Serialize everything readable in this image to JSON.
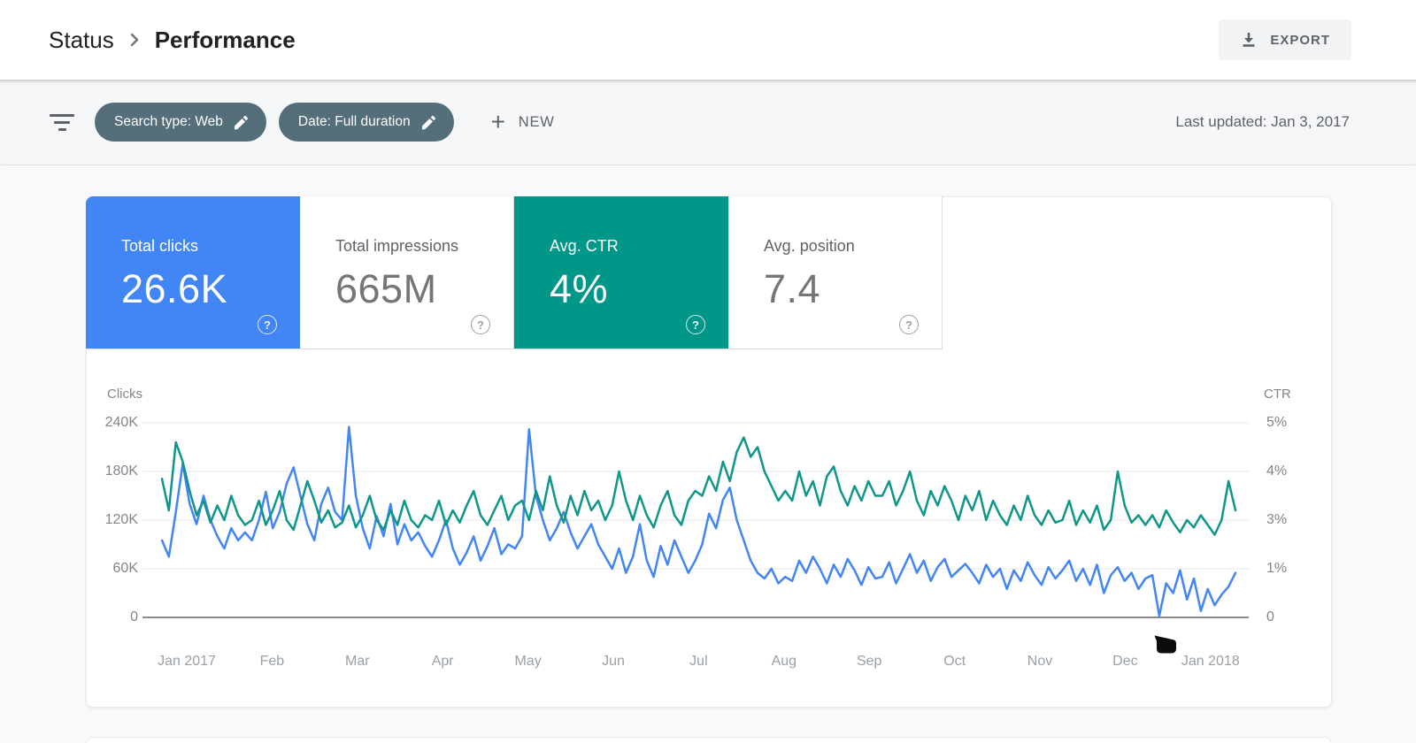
{
  "header": {
    "breadcrumb_root": "Status",
    "breadcrumb_current": "Performance",
    "export_label": "EXPORT"
  },
  "filter_bar": {
    "chips": [
      {
        "label": "Search type: Web"
      },
      {
        "label": "Date: Full duration"
      }
    ],
    "new_label": "NEW",
    "last_updated": "Last updated: Jan 3, 2017"
  },
  "metric_cards": [
    {
      "label": "Total clicks",
      "value": "26.6K",
      "variant": "blue",
      "selected": true
    },
    {
      "label": "Total impressions",
      "value": "665M",
      "variant": "white",
      "selected": false
    },
    {
      "label": "Avg. CTR",
      "value": "4%",
      "variant": "teal",
      "selected": true
    },
    {
      "label": "Avg. position",
      "value": "7.4",
      "variant": "white",
      "selected": false
    }
  ],
  "colors": {
    "blue": "#4285f4",
    "teal": "#009688",
    "chip": "#546e7a",
    "line_clicks": "#4285f4",
    "line_ctr": "#0e9688"
  },
  "chart_data": {
    "type": "line",
    "x_range": [
      "Jan 2017",
      "Jan 2018"
    ],
    "x_labels": [
      "Jan 2017",
      "Feb",
      "Mar",
      "Apr",
      "May",
      "Jun",
      "Jul",
      "Aug",
      "Sep",
      "Oct",
      "Nov",
      "Dec",
      "Jan 2018"
    ],
    "left_axis": {
      "label": "Clicks",
      "ticks": [
        "240K",
        "180K",
        "120K",
        "60K",
        "0"
      ],
      "max_thousands": 240
    },
    "right_axis": {
      "label": "CTR",
      "ticks": [
        "5%",
        "4%",
        "3%",
        "1%",
        "0"
      ],
      "scale_anchors": [
        0,
        1,
        3,
        4,
        5
      ]
    },
    "grid": true,
    "legend_position": "none",
    "series": [
      {
        "name": "Clicks",
        "unit": "thousands",
        "values": [
          95,
          75,
          130,
          190,
          140,
          115,
          150,
          120,
          100,
          85,
          110,
          95,
          105,
          95,
          120,
          155,
          110,
          130,
          165,
          185,
          150,
          115,
          95,
          140,
          160,
          130,
          120,
          235,
          150,
          110,
          85,
          125,
          100,
          140,
          90,
          115,
          95,
          105,
          88,
          75,
          95,
          120,
          85,
          65,
          80,
          100,
          70,
          88,
          110,
          78,
          90,
          85,
          100,
          232,
          150,
          120,
          95,
          110,
          130,
          105,
          85,
          100,
          115,
          90,
          75,
          60,
          85,
          55,
          75,
          115,
          70,
          50,
          88,
          65,
          95,
          75,
          55,
          70,
          90,
          128,
          110,
          145,
          160,
          120,
          95,
          70,
          55,
          48,
          60,
          42,
          50,
          45,
          70,
          55,
          75,
          60,
          42,
          65,
          50,
          72,
          58,
          40,
          62,
          48,
          50,
          68,
          42,
          60,
          78,
          55,
          70,
          45,
          62,
          72,
          50,
          58,
          66,
          55,
          42,
          65,
          50,
          60,
          35,
          58,
          45,
          68,
          52,
          40,
          62,
          48,
          58,
          70,
          45,
          60,
          40,
          65,
          30,
          52,
          62,
          45,
          55,
          35,
          48,
          52,
          2,
          42,
          30,
          58,
          22,
          48,
          8,
          35,
          15,
          28,
          38,
          55
        ]
      },
      {
        "name": "CTR",
        "unit": "percent",
        "values": [
          3.85,
          3.2,
          4.6,
          4.2,
          3.6,
          3.1,
          3.4,
          2.9,
          3.3,
          3.0,
          3.5,
          3.1,
          2.8,
          3.0,
          3.4,
          2.8,
          3.2,
          3.6,
          3.0,
          2.6,
          3.3,
          3.8,
          3.4,
          2.9,
          3.2,
          2.7,
          2.9,
          3.3,
          2.7,
          3.1,
          3.5,
          3.0,
          2.6,
          3.2,
          2.8,
          3.4,
          3.0,
          2.7,
          3.1,
          3.0,
          3.4,
          2.8,
          3.2,
          2.9,
          3.3,
          3.6,
          3.1,
          2.8,
          3.2,
          3.5,
          3.0,
          3.3,
          3.4,
          3.0,
          3.6,
          3.2,
          3.9,
          3.3,
          2.9,
          3.5,
          3.1,
          3.6,
          3.2,
          3.4,
          3.0,
          3.3,
          4.0,
          3.4,
          3.0,
          3.5,
          3.1,
          2.7,
          3.3,
          3.6,
          3.1,
          2.8,
          3.4,
          3.6,
          3.5,
          3.9,
          3.6,
          4.2,
          3.8,
          4.4,
          4.7,
          4.3,
          4.5,
          4.0,
          3.7,
          3.4,
          3.6,
          3.4,
          4.0,
          3.5,
          3.8,
          3.3,
          3.9,
          4.1,
          3.6,
          3.3,
          3.7,
          3.4,
          3.8,
          3.5,
          3.5,
          3.8,
          3.3,
          3.6,
          4.0,
          3.4,
          3.1,
          3.6,
          3.3,
          3.7,
          3.4,
          3.0,
          3.5,
          3.2,
          3.6,
          3.0,
          3.4,
          3.1,
          2.8,
          3.3,
          3.0,
          3.5,
          3.1,
          2.8,
          3.2,
          2.9,
          3.0,
          3.4,
          2.8,
          3.2,
          2.9,
          3.3,
          2.6,
          3.0,
          4.0,
          3.3,
          2.9,
          3.1,
          2.8,
          3.1,
          2.7,
          3.2,
          2.9,
          2.5,
          3.0,
          2.7,
          3.1,
          2.8,
          2.4,
          3.0,
          3.8,
          3.2
        ]
      }
    ]
  },
  "cursor_marker": {
    "visible": true
  }
}
